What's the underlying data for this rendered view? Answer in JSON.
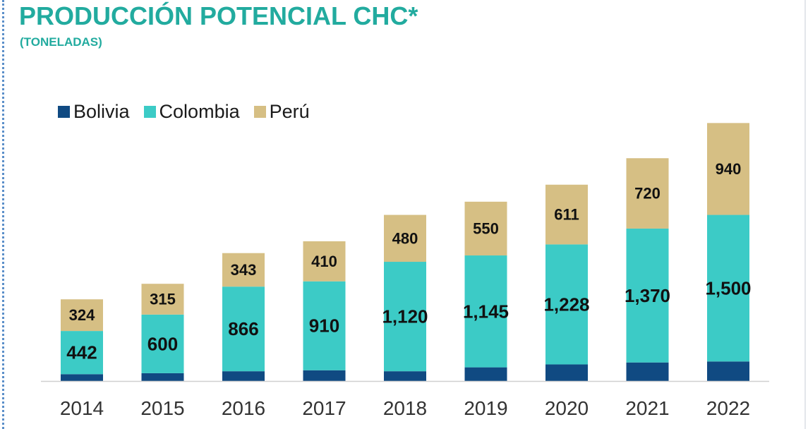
{
  "colors": {
    "Bolivia": "#104a82",
    "Colombia": "#3ccbc6",
    "Perú": "#d6bf84",
    "title": "#22ab9f"
  },
  "chart_data": {
    "type": "bar",
    "stacked": true,
    "title": "PRODUCCIÓN POTENCIAL CHC*",
    "subtitle": "(TONELADAS)",
    "xlabel": "",
    "ylabel": "",
    "grid": false,
    "legend_position": "top-left",
    "categories": [
      "2014",
      "2015",
      "2016",
      "2017",
      "2018",
      "2019",
      "2020",
      "2021",
      "2022"
    ],
    "series": [
      {
        "name": "Bolivia",
        "values": [
          70,
          80,
          100,
          110,
          100,
          140,
          170,
          190,
          200
        ],
        "labels": [
          "",
          "",
          "",
          "",
          "",
          "",
          "",
          "",
          ""
        ]
      },
      {
        "name": "Colombia",
        "values": [
          442,
          600,
          866,
          910,
          1120,
          1145,
          1228,
          1370,
          1500
        ],
        "labels": [
          "442",
          "600",
          "866",
          "910",
          "1,120",
          "1,145",
          "1,228",
          "1,370",
          "1,500"
        ]
      },
      {
        "name": "Perú",
        "values": [
          324,
          315,
          343,
          410,
          480,
          550,
          611,
          720,
          940
        ],
        "labels": [
          "324",
          "315",
          "343",
          "410",
          "480",
          "550",
          "611",
          "720",
          "940"
        ]
      }
    ]
  }
}
